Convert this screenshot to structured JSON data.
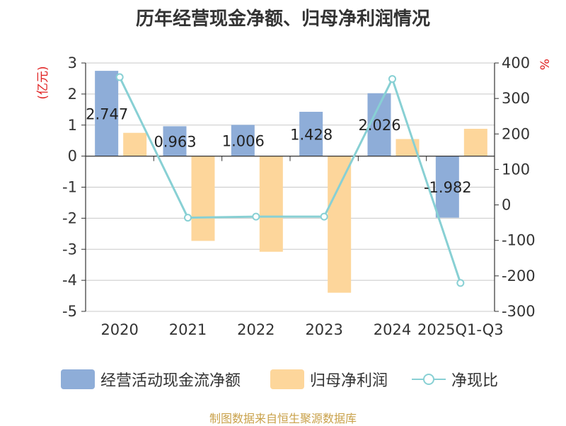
{
  "title": "历年经营现金净额、归母净利润情况",
  "source_note": "制图数据来自恒生聚源数据库",
  "colors": {
    "operating": "#8eadd8",
    "profit": "#fdd69b",
    "ratio": "#88d0d4",
    "unit": "#e02020",
    "axis": "#333333",
    "grid": "#c8c8c8"
  },
  "chart_data": {
    "type": "bar",
    "title": "历年经营现金净额、归母净利润情况",
    "categories": [
      "2020",
      "2021",
      "2022",
      "2023",
      "2024",
      "2025Q1-Q3"
    ],
    "left_axis": {
      "unit": "(亿元)",
      "ylim": [
        -5,
        3
      ],
      "ticks": [
        "3",
        "2",
        "1",
        "0",
        "-1",
        "-2",
        "-3",
        "-4",
        "-5"
      ]
    },
    "right_axis": {
      "unit": "%",
      "ylim": [
        -300,
        400
      ],
      "ticks": [
        "400",
        "300",
        "200",
        "100",
        "0",
        "-100",
        "-200",
        "-300"
      ]
    },
    "series": [
      {
        "name": "经营活动现金流净额",
        "type": "bar",
        "axis": "left",
        "values": [
          2.747,
          0.963,
          1.006,
          1.428,
          2.026,
          -1.982
        ],
        "labels": [
          "2.747",
          "0.963",
          "1.006",
          "1.428",
          "2.026",
          "-1.982"
        ]
      },
      {
        "name": "归母净利润",
        "type": "bar",
        "axis": "left",
        "values": [
          0.75,
          -2.73,
          -3.08,
          -4.4,
          0.55,
          0.88
        ]
      },
      {
        "name": "净现比",
        "type": "line",
        "axis": "right",
        "values": [
          360,
          -36,
          -33,
          -33,
          355,
          -220
        ]
      }
    ],
    "grid": true,
    "legend_position": "bottom"
  }
}
